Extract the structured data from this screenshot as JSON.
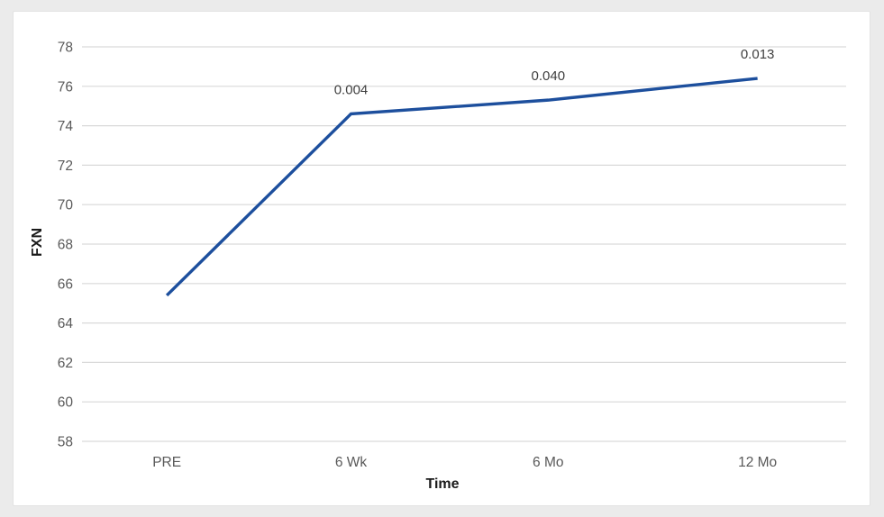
{
  "page": {
    "background_color": "#ebebeb",
    "card_background_color": "#ffffff"
  },
  "chart_data": {
    "type": "line",
    "title": "",
    "xlabel": "Time",
    "ylabel": "FXN",
    "categories": [
      "PRE",
      "6 Wk",
      "6 Mo",
      "12 Mo"
    ],
    "series": [
      {
        "name": "FXN",
        "values": [
          65.4,
          74.6,
          75.3,
          76.4
        ],
        "color": "#1d4f9d"
      }
    ],
    "point_annotations": [
      "",
      "0.004",
      "0.040",
      "0.013"
    ],
    "ylim": [
      58,
      78
    ],
    "yticks": [
      58,
      60,
      62,
      64,
      66,
      68,
      70,
      72,
      74,
      76,
      78
    ],
    "grid": "horizontal",
    "legend_position": "none",
    "markers": "none",
    "colors": {
      "line": "#1d4f9d",
      "gridline": "#d9d9d9",
      "tick_label": "#595959",
      "annotation": "#3f3f3f",
      "axis_title": "#1a1a1a"
    }
  }
}
